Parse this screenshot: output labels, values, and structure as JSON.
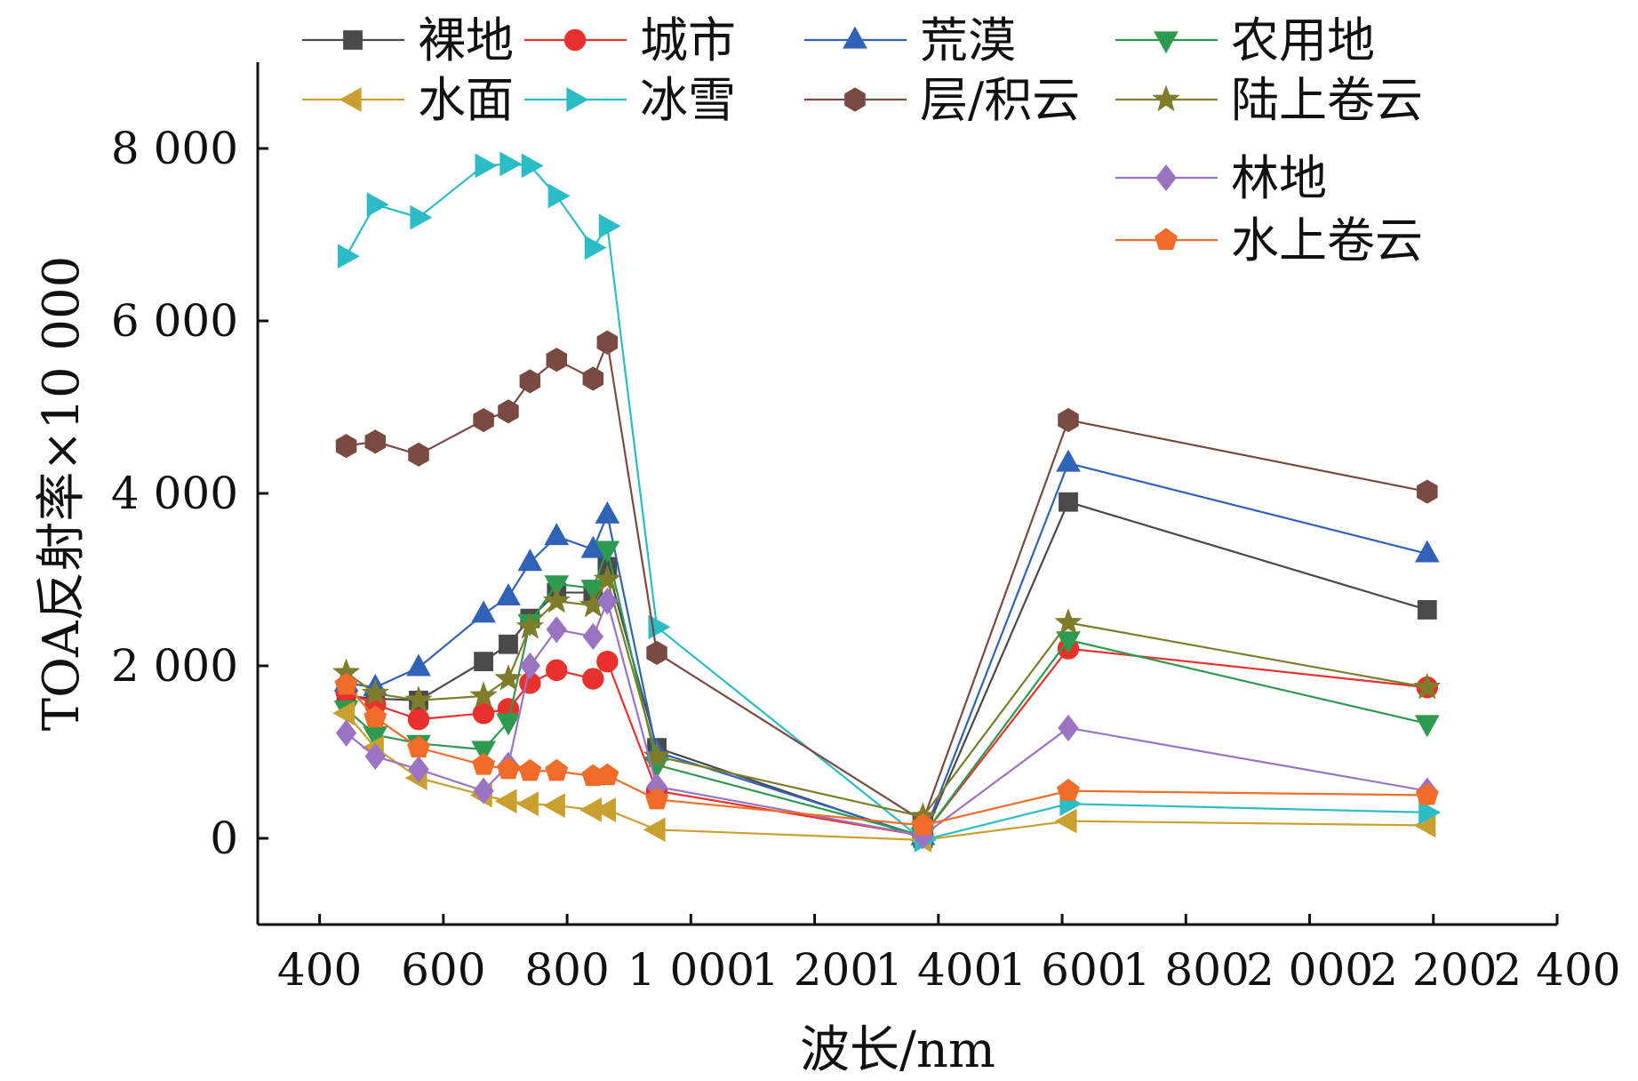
{
  "chart_data": {
    "type": "line",
    "xlabel": "波长/nm",
    "ylabel": "TOA反射率×10 000",
    "xlim": [
      300,
      2400
    ],
    "ylim": [
      -1000,
      9000
    ],
    "x_ticks": [
      400,
      600,
      800,
      1000,
      1200,
      1400,
      1600,
      1800,
      2000,
      2200,
      2400
    ],
    "x_tick_labels": [
      "400",
      "600",
      "800",
      "1 000",
      "1 200",
      "1 400",
      "1 600",
      "1 800",
      "2 000",
      "2 200",
      "2 400"
    ],
    "y_ticks": [
      0,
      2000,
      4000,
      6000,
      8000
    ],
    "y_tick_labels": [
      "0",
      "2 000",
      "4 000",
      "6 000",
      "8 000"
    ],
    "grid": false,
    "legend_position": "top",
    "series": [
      {
        "name": "裸地",
        "color": "#4a4a4a",
        "marker": "square",
        "x": [
          443,
          490,
          560,
          665,
          705,
          740,
          783,
          842,
          865,
          945,
          1375,
          1610,
          2190
        ],
        "y": [
          1650,
          1620,
          1600,
          2050,
          2250,
          2550,
          2850,
          2850,
          3150,
          1050,
          0,
          3900,
          2650
        ]
      },
      {
        "name": "城市",
        "color": "#e8302c",
        "marker": "circle",
        "x": [
          443,
          490,
          560,
          665,
          705,
          740,
          783,
          842,
          865,
          945,
          1375,
          1610,
          2190
        ],
        "y": [
          1700,
          1550,
          1380,
          1450,
          1500,
          1800,
          1950,
          1850,
          2050,
          550,
          30,
          2200,
          1750
        ]
      },
      {
        "name": "荒漠",
        "color": "#3063b8",
        "marker": "triangle-up",
        "x": [
          443,
          490,
          560,
          665,
          705,
          740,
          783,
          842,
          865,
          945,
          1375,
          1610,
          2190
        ],
        "y": [
          1800,
          1750,
          1980,
          2600,
          2800,
          3200,
          3500,
          3350,
          3750,
          1000,
          20,
          4350,
          3300
        ]
      },
      {
        "name": "农用地",
        "color": "#2d9a4f",
        "marker": "triangle-down",
        "x": [
          443,
          490,
          560,
          665,
          705,
          740,
          783,
          842,
          865,
          945,
          1375,
          1610,
          2190
        ],
        "y": [
          1500,
          1200,
          1100,
          1030,
          1350,
          2500,
          2950,
          2900,
          3350,
          850,
          30,
          2300,
          1330
        ]
      },
      {
        "name": "水面",
        "color": "#c9a030",
        "marker": "triangle-left",
        "x": [
          443,
          490,
          560,
          665,
          705,
          740,
          783,
          842,
          865,
          945,
          1375,
          1610,
          2190
        ],
        "y": [
          1450,
          1050,
          700,
          500,
          430,
          400,
          380,
          330,
          330,
          100,
          -20,
          200,
          150
        ]
      },
      {
        "name": "冰雪",
        "color": "#2bbcc6",
        "marker": "triangle-right",
        "x": [
          443,
          490,
          560,
          665,
          705,
          740,
          783,
          842,
          865,
          945,
          1375,
          1610,
          2190
        ],
        "y": [
          6750,
          7350,
          7200,
          7800,
          7820,
          7800,
          7450,
          6850,
          7100,
          2450,
          -20,
          400,
          300
        ]
      },
      {
        "name": "层/积云",
        "color": "#7a4a42",
        "marker": "hexagon",
        "x": [
          443,
          490,
          560,
          665,
          705,
          740,
          783,
          842,
          865,
          945,
          1375,
          1610,
          2190
        ],
        "y": [
          4550,
          4600,
          4450,
          4850,
          4950,
          5300,
          5550,
          5330,
          5750,
          2150,
          200,
          4850,
          4020
        ]
      },
      {
        "name": "陆上卷云",
        "color": "#7d7d2c",
        "marker": "star",
        "x": [
          443,
          490,
          560,
          665,
          705,
          740,
          783,
          842,
          865,
          945,
          1375,
          1610,
          2190
        ],
        "y": [
          1920,
          1680,
          1600,
          1650,
          1850,
          2450,
          2750,
          2700,
          3000,
          950,
          250,
          2500,
          1750
        ]
      },
      {
        "name": "林地",
        "color": "#9a74c2",
        "marker": "diamond",
        "x": [
          443,
          490,
          560,
          665,
          705,
          740,
          783,
          842,
          865,
          945,
          1375,
          1610,
          2190
        ],
        "y": [
          1220,
          950,
          800,
          550,
          850,
          2000,
          2420,
          2340,
          2750,
          600,
          30,
          1280,
          550
        ]
      },
      {
        "name": "水上卷云",
        "color": "#ef6d28",
        "marker": "pentagon",
        "x": [
          443,
          490,
          560,
          665,
          705,
          740,
          783,
          842,
          865,
          945,
          1375,
          1610,
          2190
        ],
        "y": [
          1780,
          1400,
          1050,
          850,
          800,
          780,
          780,
          720,
          730,
          450,
          150,
          550,
          500
        ]
      }
    ]
  }
}
